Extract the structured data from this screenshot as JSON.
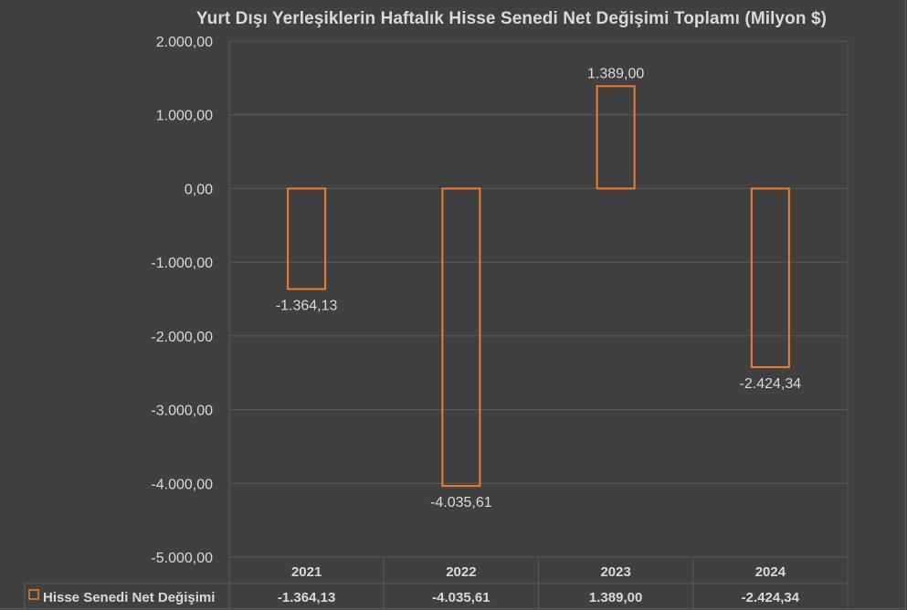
{
  "chart_data": {
    "type": "bar",
    "title": "Yurt Dışı Yerleşiklerin Haftalık Hisse Senedi Net Değişimi Toplamı (Milyon $)",
    "categories": [
      "2021",
      "2022",
      "2023",
      "2024"
    ],
    "series": [
      {
        "name": "Hisse Senedi Net Değişimi",
        "values": [
          -1364.13,
          -4035.61,
          1389.0,
          -2424.34
        ],
        "labels": [
          "-1.364,13",
          "-4.035,61",
          "1.389,00",
          "-2.424,34"
        ],
        "table_labels": [
          "-1.364,13",
          "-4.035,61",
          "1.389,00",
          "-2.424,34"
        ],
        "color": "#ed7d31"
      }
    ],
    "ylim": [
      -5000,
      2000
    ],
    "yticks": [
      2000,
      1000,
      0,
      -1000,
      -2000,
      -3000,
      -4000,
      -5000
    ],
    "ytick_labels": [
      "2.000,00",
      "1.000,00",
      "0,00",
      "-1.000,00",
      "-2.000,00",
      "-3.000,00",
      "-4.000,00",
      "-5.000,00"
    ],
    "grid": true,
    "legend": "data-table-left",
    "data_table": true
  },
  "colors": {
    "background": "#404040",
    "gridline": "#595959",
    "bar_outline": "#ed7d31",
    "text": "#d9d9d9"
  }
}
